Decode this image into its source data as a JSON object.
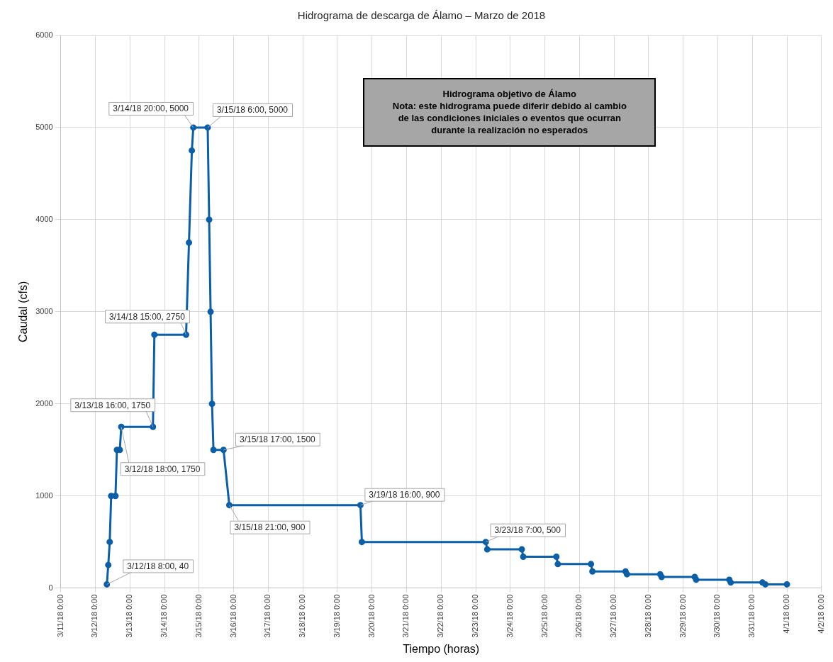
{
  "chart_data": {
    "type": "line",
    "title": "Hidrograma de descarga de Álamo – Marzo de 2018",
    "xlabel": "Tiempo (horas)",
    "ylabel": "Caudal (cfs)",
    "x": [
      "2018-03-12T08:00",
      "2018-03-12T09:00",
      "2018-03-12T10:00",
      "2018-03-12T11:00",
      "2018-03-12T14:00",
      "2018-03-12T15:00",
      "2018-03-12T17:00",
      "2018-03-12T18:00",
      "2018-03-13T16:00",
      "2018-03-13T17:00",
      "2018-03-14T15:00",
      "2018-03-14T17:00",
      "2018-03-14T19:00",
      "2018-03-14T20:00",
      "2018-03-15T06:00",
      "2018-03-15T07:00",
      "2018-03-15T08:00",
      "2018-03-15T09:00",
      "2018-03-15T10:00",
      "2018-03-15T17:00",
      "2018-03-15T21:00",
      "2018-03-19T16:00",
      "2018-03-19T17:00",
      "2018-03-23T07:00",
      "2018-03-23T08:00",
      "2018-03-24T08:00",
      "2018-03-24T09:00",
      "2018-03-25T08:00",
      "2018-03-25T09:00",
      "2018-03-26T08:00",
      "2018-03-26T09:00",
      "2018-03-27T08:00",
      "2018-03-27T09:00",
      "2018-03-28T08:00",
      "2018-03-28T09:00",
      "2018-03-29T08:00",
      "2018-03-29T09:00",
      "2018-03-30T08:00",
      "2018-03-30T09:00",
      "2018-03-31T07:00",
      "2018-03-31T09:00",
      "2018-04-01T00:00"
    ],
    "series": [
      {
        "color": "#0a5fa8",
        "values": [
          40,
          250,
          500,
          1000,
          1000,
          1500,
          1500,
          1750,
          1750,
          2750,
          2750,
          3750,
          4750,
          5000,
          5000,
          4000,
          3000,
          2000,
          1500,
          1500,
          900,
          900,
          500,
          500,
          420,
          420,
          340,
          340,
          260,
          260,
          180,
          180,
          150,
          150,
          120,
          120,
          90,
          90,
          60,
          60,
          40,
          40
        ]
      }
    ],
    "xlim": [
      "2018-03-11",
      "2018-04-02"
    ],
    "xticks": [
      {
        "value": "2018-03-11",
        "label": "3/11/18 0:00"
      },
      {
        "value": "2018-03-12",
        "label": "3/12/18 0:00"
      },
      {
        "value": "2018-03-13",
        "label": "3/13/18 0:00"
      },
      {
        "value": "2018-03-14",
        "label": "3/14/18 0:00"
      },
      {
        "value": "2018-03-15",
        "label": "3/15/18 0:00"
      },
      {
        "value": "2018-03-16",
        "label": "3/16/18 0:00"
      },
      {
        "value": "2018-03-17",
        "label": "3/17/18 0:00"
      },
      {
        "value": "2018-03-18",
        "label": "3/18/18 0:00"
      },
      {
        "value": "2018-03-19",
        "label": "3/19/18 0:00"
      },
      {
        "value": "2018-03-20",
        "label": "3/20/18 0:00"
      },
      {
        "value": "2018-03-21",
        "label": "3/21/18 0:00"
      },
      {
        "value": "2018-03-22",
        "label": "3/22/18 0:00"
      },
      {
        "value": "2018-03-23",
        "label": "3/23/18 0:00"
      },
      {
        "value": "2018-03-24",
        "label": "3/24/18 0:00"
      },
      {
        "value": "2018-03-25",
        "label": "3/25/18 0:00"
      },
      {
        "value": "2018-03-26",
        "label": "3/26/18 0:00"
      },
      {
        "value": "2018-03-27",
        "label": "3/27/18 0:00"
      },
      {
        "value": "2018-03-28",
        "label": "3/28/18 0:00"
      },
      {
        "value": "2018-03-29",
        "label": "3/29/18 0:00"
      },
      {
        "value": "2018-03-30",
        "label": "3/30/18 0:00"
      },
      {
        "value": "2018-03-31",
        "label": "3/31/18 0:00"
      },
      {
        "value": "2018-04-01",
        "label": "4/1/18 0:00"
      },
      {
        "value": "2018-04-02",
        "label": "4/2/18 0:00"
      }
    ],
    "ylim": [
      0,
      6000
    ],
    "yticks": [
      0,
      1000,
      2000,
      3000,
      4000,
      5000,
      6000
    ],
    "grid": true,
    "legend": false,
    "marker": "circle",
    "line_style": "solid",
    "annotations": [
      {
        "text": "3/12/18 8:00, 40",
        "x": "2018-03-12T08:00",
        "y": 40
      },
      {
        "text": "3/12/18 18:00, 1750",
        "x": "2018-03-12T18:00",
        "y": 1750
      },
      {
        "text": "3/13/18 16:00, 1750",
        "x": "2018-03-13T16:00",
        "y": 1750
      },
      {
        "text": "3/14/18 15:00, 2750",
        "x": "2018-03-14T15:00",
        "y": 2750
      },
      {
        "text": "3/14/18 20:00, 5000",
        "x": "2018-03-14T20:00",
        "y": 5000
      },
      {
        "text": "3/15/18 6:00, 5000",
        "x": "2018-03-15T06:00",
        "y": 5000
      },
      {
        "text": "3/15/18 17:00, 1500",
        "x": "2018-03-15T17:00",
        "y": 1500
      },
      {
        "text": "3/15/18 21:00, 900",
        "x": "2018-03-15T21:00",
        "y": 900
      },
      {
        "text": "3/19/18 16:00, 900",
        "x": "2018-03-19T16:00",
        "y": 900
      },
      {
        "text": "3/23/18 7:00, 500",
        "x": "2018-03-23T07:00",
        "y": 500
      },
      "Hidrograma objetivo de Álamo\nNota: este hidrograma puede diferir debido al cambio\nde las condiciones iniciales o eventos que ocurran\ndurante la realización no esperados"
    ]
  }
}
